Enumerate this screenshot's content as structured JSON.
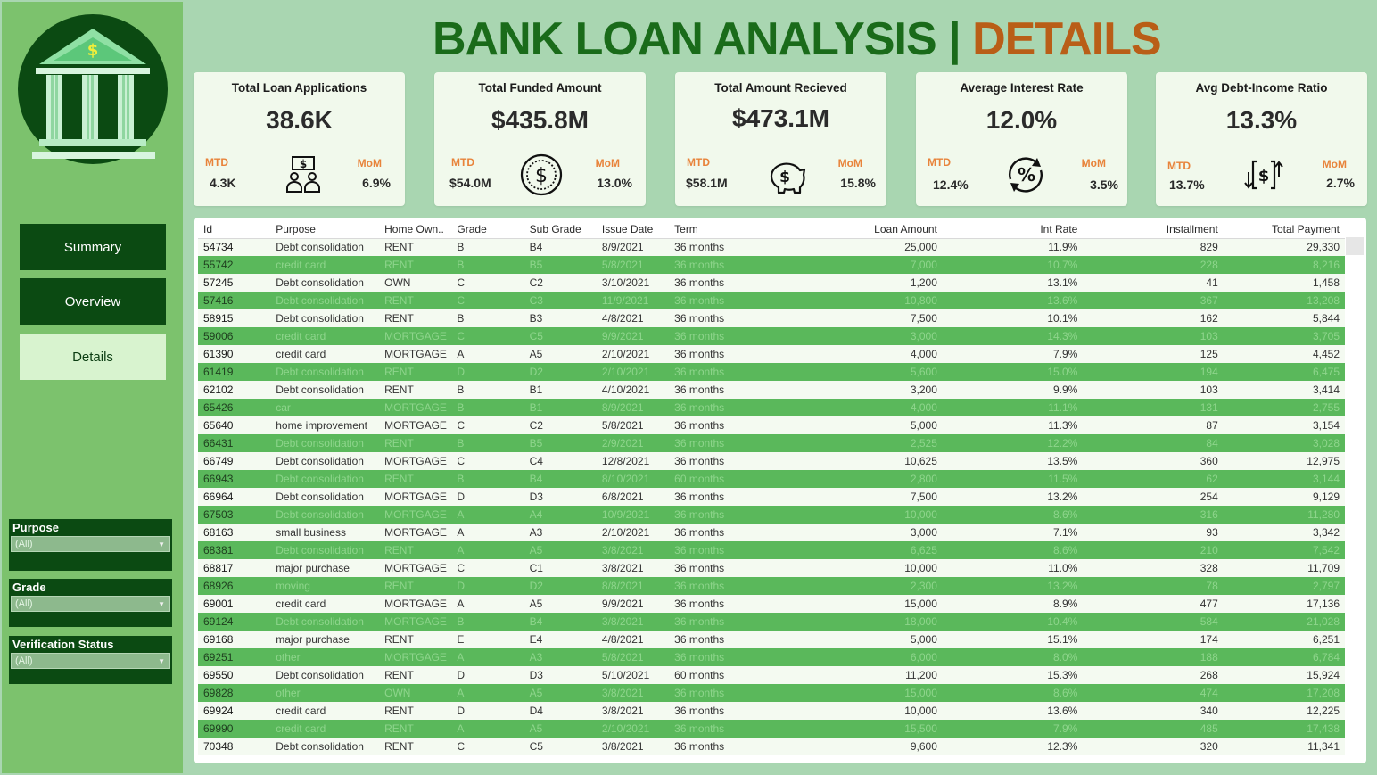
{
  "title": {
    "part1": "BANK LOAN ANALYSIS | ",
    "part2": "DETAILS"
  },
  "colors": {
    "dark_green": "#0b4a12",
    "title_green": "#1a6b1a",
    "title_orange": "#b95e17",
    "row_green": "#5ab85b",
    "accent_orange": "#e8833a"
  },
  "nav": {
    "summary": "Summary",
    "overview": "Overview",
    "details": "Details"
  },
  "filters": [
    {
      "label": "Purpose",
      "value": "(All)"
    },
    {
      "label": "Grade",
      "value": "(All)"
    },
    {
      "label": "Verification Status",
      "value": "(All)"
    }
  ],
  "kpis": [
    {
      "title": "Total Loan Applications",
      "value": "38.6K",
      "mtd_label": "MTD",
      "mtd": "4.3K",
      "mom_label": "MoM",
      "mom": "6.9%",
      "icon": "people-money-icon"
    },
    {
      "title": "Total Funded Amount",
      "value": "$435.8M",
      "mtd_label": "MTD",
      "mtd": "$54.0M",
      "mom_label": "MoM",
      "mom": "13.0%",
      "icon": "dollar-coin-icon"
    },
    {
      "title": "Total Amount Recieved",
      "value": "$473.1M",
      "mtd_label": "MTD",
      "mtd": "$58.1M",
      "mom_label": "MoM",
      "mom": "15.8%",
      "icon": "piggy-bank-icon"
    },
    {
      "title": "Average Interest Rate",
      "value": "12.0%",
      "mtd_label": "MTD",
      "mtd": "12.4%",
      "mom_label": "MoM",
      "mom": "3.5%",
      "icon": "percent-cycle-icon"
    },
    {
      "title": "Avg Debt-Income Ratio",
      "value": "13.3%",
      "mtd_label": "MTD",
      "mtd": "13.7%",
      "mom_label": "MoM",
      "mom": "2.7%",
      "icon": "dollar-transfer-icon"
    }
  ],
  "table": {
    "columns": [
      "Id",
      "Purpose",
      "Home Own..",
      "Grade",
      "Sub Grade",
      "Issue Date",
      "Term",
      "Loan Amount",
      "Int Rate",
      "Installment",
      "Total Payment"
    ],
    "rows": [
      [
        "54734",
        "Debt consolidation",
        "RENT",
        "B",
        "B4",
        "8/9/2021",
        "36 months",
        "25,000",
        "11.9%",
        "829",
        "29,330"
      ],
      [
        "55742",
        "credit card",
        "RENT",
        "B",
        "B5",
        "5/8/2021",
        "36 months",
        "7,000",
        "10.7%",
        "228",
        "8,216"
      ],
      [
        "57245",
        "Debt consolidation",
        "OWN",
        "C",
        "C2",
        "3/10/2021",
        "36 months",
        "1,200",
        "13.1%",
        "41",
        "1,458"
      ],
      [
        "57416",
        "Debt consolidation",
        "RENT",
        "C",
        "C3",
        "11/9/2021",
        "36 months",
        "10,800",
        "13.6%",
        "367",
        "13,208"
      ],
      [
        "58915",
        "Debt consolidation",
        "RENT",
        "B",
        "B3",
        "4/8/2021",
        "36 months",
        "7,500",
        "10.1%",
        "162",
        "5,844"
      ],
      [
        "59006",
        "credit card",
        "MORTGAGE",
        "C",
        "C5",
        "9/9/2021",
        "36 months",
        "3,000",
        "14.3%",
        "103",
        "3,705"
      ],
      [
        "61390",
        "credit card",
        "MORTGAGE",
        "A",
        "A5",
        "2/10/2021",
        "36 months",
        "4,000",
        "7.9%",
        "125",
        "4,452"
      ],
      [
        "61419",
        "Debt consolidation",
        "RENT",
        "D",
        "D2",
        "2/10/2021",
        "36 months",
        "5,600",
        "15.0%",
        "194",
        "6,475"
      ],
      [
        "62102",
        "Debt consolidation",
        "RENT",
        "B",
        "B1",
        "4/10/2021",
        "36 months",
        "3,200",
        "9.9%",
        "103",
        "3,414"
      ],
      [
        "65426",
        "car",
        "MORTGAGE",
        "B",
        "B1",
        "8/9/2021",
        "36 months",
        "4,000",
        "11.1%",
        "131",
        "2,755"
      ],
      [
        "65640",
        "home improvement",
        "MORTGAGE",
        "C",
        "C2",
        "5/8/2021",
        "36 months",
        "5,000",
        "11.3%",
        "87",
        "3,154"
      ],
      [
        "66431",
        "Debt consolidation",
        "RENT",
        "B",
        "B5",
        "2/9/2021",
        "36 months",
        "2,525",
        "12.2%",
        "84",
        "3,028"
      ],
      [
        "66749",
        "Debt consolidation",
        "MORTGAGE",
        "C",
        "C4",
        "12/8/2021",
        "36 months",
        "10,625",
        "13.5%",
        "360",
        "12,975"
      ],
      [
        "66943",
        "Debt consolidation",
        "RENT",
        "B",
        "B4",
        "8/10/2021",
        "60 months",
        "2,800",
        "11.5%",
        "62",
        "3,144"
      ],
      [
        "66964",
        "Debt consolidation",
        "MORTGAGE",
        "D",
        "D3",
        "6/8/2021",
        "36 months",
        "7,500",
        "13.2%",
        "254",
        "9,129"
      ],
      [
        "67503",
        "Debt consolidation",
        "MORTGAGE",
        "A",
        "A4",
        "10/9/2021",
        "36 months",
        "10,000",
        "8.6%",
        "316",
        "11,280"
      ],
      [
        "68163",
        "small business",
        "MORTGAGE",
        "A",
        "A3",
        "2/10/2021",
        "36 months",
        "3,000",
        "7.1%",
        "93",
        "3,342"
      ],
      [
        "68381",
        "Debt consolidation",
        "RENT",
        "A",
        "A5",
        "3/8/2021",
        "36 months",
        "6,625",
        "8.6%",
        "210",
        "7,542"
      ],
      [
        "68817",
        "major purchase",
        "MORTGAGE",
        "C",
        "C1",
        "3/8/2021",
        "36 months",
        "10,000",
        "11.0%",
        "328",
        "11,709"
      ],
      [
        "68926",
        "moving",
        "RENT",
        "D",
        "D2",
        "8/8/2021",
        "36 months",
        "2,300",
        "13.2%",
        "78",
        "2,797"
      ],
      [
        "69001",
        "credit card",
        "MORTGAGE",
        "A",
        "A5",
        "9/9/2021",
        "36 months",
        "15,000",
        "8.9%",
        "477",
        "17,136"
      ],
      [
        "69124",
        "Debt consolidation",
        "MORTGAGE",
        "B",
        "B4",
        "3/8/2021",
        "36 months",
        "18,000",
        "10.4%",
        "584",
        "21,028"
      ],
      [
        "69168",
        "major purchase",
        "RENT",
        "E",
        "E4",
        "4/8/2021",
        "36 months",
        "5,000",
        "15.1%",
        "174",
        "6,251"
      ],
      [
        "69251",
        "other",
        "MORTGAGE",
        "A",
        "A3",
        "5/8/2021",
        "36 months",
        "6,000",
        "8.0%",
        "188",
        "6,784"
      ],
      [
        "69550",
        "Debt consolidation",
        "RENT",
        "D",
        "D3",
        "5/10/2021",
        "60 months",
        "11,200",
        "15.3%",
        "268",
        "15,924"
      ],
      [
        "69828",
        "other",
        "OWN",
        "A",
        "A5",
        "3/8/2021",
        "36 months",
        "15,000",
        "8.6%",
        "474",
        "17,208"
      ],
      [
        "69924",
        "credit card",
        "RENT",
        "D",
        "D4",
        "3/8/2021",
        "36 months",
        "10,000",
        "13.6%",
        "340",
        "12,225"
      ],
      [
        "69990",
        "credit card",
        "RENT",
        "A",
        "A5",
        "2/10/2021",
        "36 months",
        "15,500",
        "7.9%",
        "485",
        "17,438"
      ],
      [
        "70348",
        "Debt consolidation",
        "RENT",
        "C",
        "C5",
        "3/8/2021",
        "36 months",
        "9,600",
        "12.3%",
        "320",
        "11,341"
      ]
    ]
  }
}
